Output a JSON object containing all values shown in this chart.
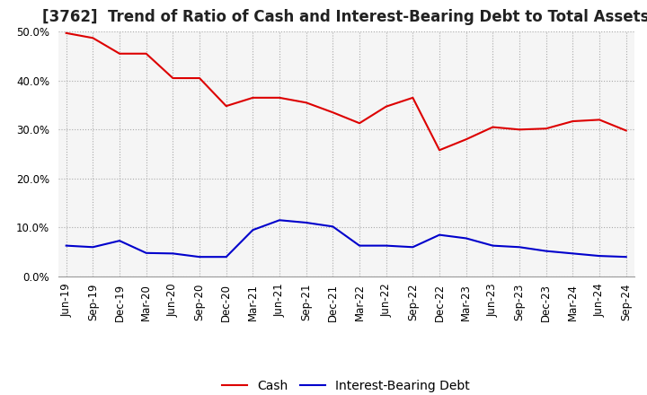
{
  "title": "[3762]  Trend of Ratio of Cash and Interest-Bearing Debt to Total Assets",
  "labels": [
    "Jun-19",
    "Sep-19",
    "Dec-19",
    "Mar-20",
    "Jun-20",
    "Sep-20",
    "Dec-20",
    "Mar-21",
    "Jun-21",
    "Sep-21",
    "Dec-21",
    "Mar-22",
    "Jun-22",
    "Sep-22",
    "Dec-22",
    "Mar-23",
    "Jun-23",
    "Sep-23",
    "Dec-23",
    "Mar-24",
    "Jun-24",
    "Sep-24"
  ],
  "cash": [
    0.497,
    0.487,
    0.455,
    0.455,
    0.405,
    0.405,
    0.348,
    0.365,
    0.365,
    0.355,
    0.335,
    0.313,
    0.347,
    0.365,
    0.258,
    0.28,
    0.305,
    0.3,
    0.302,
    0.317,
    0.32,
    0.298
  ],
  "ibd": [
    0.063,
    0.06,
    0.073,
    0.048,
    0.047,
    0.04,
    0.04,
    0.095,
    0.115,
    0.11,
    0.102,
    0.063,
    0.063,
    0.06,
    0.085,
    0.078,
    0.063,
    0.06,
    0.052,
    0.047,
    0.042,
    0.04
  ],
  "cash_color": "#dd0000",
  "ibd_color": "#0000cc",
  "background_color": "#ffffff",
  "plot_bg_color": "#f5f5f5",
  "grid_color": "#aaaaaa",
  "ylim": [
    0.0,
    0.5
  ],
  "yticks": [
    0.0,
    0.1,
    0.2,
    0.3,
    0.4,
    0.5
  ],
  "legend_cash": "Cash",
  "legend_ibd": "Interest-Bearing Debt",
  "title_fontsize": 12,
  "tick_fontsize": 8.5,
  "legend_fontsize": 10
}
